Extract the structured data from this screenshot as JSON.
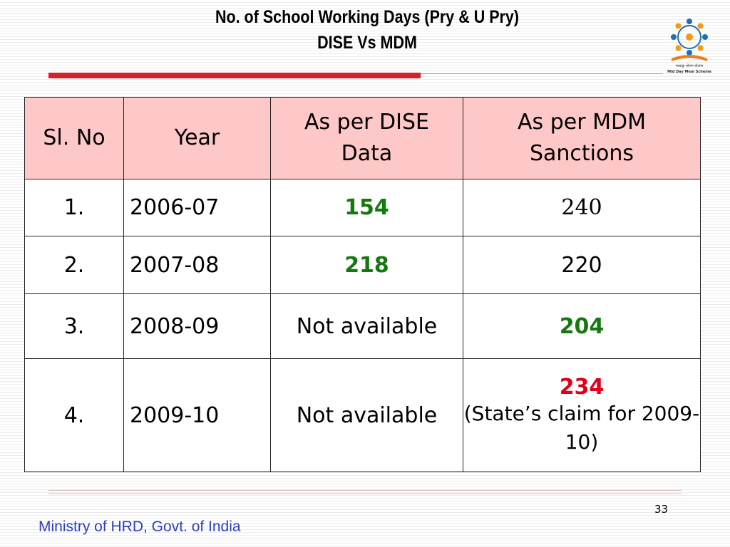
{
  "slide": {
    "title_line1": "No. of School Working Days (Pry & U Pry)",
    "title_line2": "DISE Vs MDM",
    "logo_text_hindi": "मध्याह्न भोजन योजना",
    "logo_text_english": "Mid Day Meal Scheme",
    "page_number": "33",
    "footer": "Ministry of HRD, Govt. of India"
  },
  "table": {
    "headers": [
      "Sl. No",
      "Year",
      "As per DISE Data",
      "As per MDM Sanctions"
    ],
    "header_dise_line1": "As per DISE",
    "header_dise_line2": "Data",
    "header_mdm_line1": "As per MDM",
    "header_mdm_line2": "Sanctions",
    "rows": [
      {
        "sl": "1.",
        "year": "2006-07",
        "dise": "154",
        "mdm": "240",
        "mdm_note": ""
      },
      {
        "sl": "2.",
        "year": "2007-08",
        "dise": "218",
        "mdm": "220",
        "mdm_note": ""
      },
      {
        "sl": "3.",
        "year": "2008-09",
        "dise": "Not available",
        "mdm": "204",
        "mdm_note": ""
      },
      {
        "sl": "4.",
        "year": "2009-10",
        "dise": "Not available",
        "mdm": "234",
        "mdm_note": "(State’s claim for 2009-10)"
      }
    ]
  },
  "colors": {
    "header_bg": "#ffc8c8",
    "accent_red": "#d42028",
    "value_green": "#16790f",
    "value_red": "#e0001a",
    "footer_blue": "#2e3fc0"
  }
}
